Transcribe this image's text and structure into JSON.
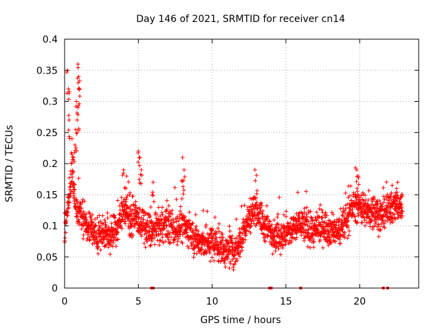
{
  "chart_data": {
    "type": "scatter",
    "title": "Day 146 of 2021, SRMTID for receiver cn14",
    "xlabel": "GPS time / hours",
    "ylabel": "SRMTID / TECUs",
    "xlim": [
      0,
      24
    ],
    "ylim": [
      0,
      0.4
    ],
    "x_ticks": [
      0,
      5,
      10,
      15,
      20
    ],
    "x_tick_labels": [
      "0",
      "5",
      "10",
      "15",
      "20"
    ],
    "y_ticks": [
      0,
      0.05,
      0.1,
      0.15,
      0.2,
      0.25,
      0.3,
      0.35,
      0.4
    ],
    "y_tick_labels": [
      "0",
      "0.05",
      "0.1",
      "0.15",
      "0.2",
      "0.25",
      "0.3",
      "0.35",
      "0.4"
    ],
    "grid": true,
    "marker": "+",
    "series_color": "#ff0000",
    "series": [
      {
        "name": "SRMTID",
        "trend": [
          [
            0.0,
            0.09
          ],
          [
            0.3,
            0.15
          ],
          [
            0.5,
            0.18
          ],
          [
            0.7,
            0.14
          ],
          [
            1.0,
            0.12
          ],
          [
            1.5,
            0.1
          ],
          [
            2.0,
            0.09
          ],
          [
            2.5,
            0.085
          ],
          [
            3.0,
            0.085
          ],
          [
            3.5,
            0.09
          ],
          [
            4.0,
            0.13
          ],
          [
            4.5,
            0.11
          ],
          [
            5.0,
            0.11
          ],
          [
            5.5,
            0.095
          ],
          [
            6.0,
            0.09
          ],
          [
            6.5,
            0.1
          ],
          [
            7.0,
            0.1
          ],
          [
            7.5,
            0.095
          ],
          [
            8.0,
            0.1
          ],
          [
            8.5,
            0.09
          ],
          [
            9.0,
            0.075
          ],
          [
            9.5,
            0.07
          ],
          [
            10.0,
            0.075
          ],
          [
            10.5,
            0.065
          ],
          [
            11.0,
            0.06
          ],
          [
            11.5,
            0.06
          ],
          [
            12.0,
            0.08
          ],
          [
            12.5,
            0.115
          ],
          [
            13.0,
            0.13
          ],
          [
            13.5,
            0.1
          ],
          [
            14.0,
            0.09
          ],
          [
            14.5,
            0.085
          ],
          [
            15.0,
            0.085
          ],
          [
            15.5,
            0.095
          ],
          [
            16.0,
            0.105
          ],
          [
            16.5,
            0.095
          ],
          [
            17.0,
            0.09
          ],
          [
            17.5,
            0.1
          ],
          [
            18.0,
            0.095
          ],
          [
            18.5,
            0.09
          ],
          [
            19.0,
            0.105
          ],
          [
            19.5,
            0.13
          ],
          [
            20.0,
            0.135
          ],
          [
            20.5,
            0.12
          ],
          [
            21.0,
            0.125
          ],
          [
            21.5,
            0.115
          ],
          [
            22.0,
            0.125
          ],
          [
            22.5,
            0.135
          ],
          [
            22.9,
            0.13
          ]
        ],
        "spread": 0.03,
        "spikes": [
          [
            0.2,
            0.35
          ],
          [
            0.25,
            0.32
          ],
          [
            0.3,
            0.27
          ],
          [
            0.5,
            0.24
          ],
          [
            0.6,
            0.21
          ],
          [
            0.7,
            0.23
          ],
          [
            0.8,
            0.3
          ],
          [
            0.85,
            0.27
          ],
          [
            0.9,
            0.36
          ],
          [
            0.95,
            0.34
          ],
          [
            1.0,
            0.32
          ],
          [
            0.9,
            0.29
          ],
          [
            4.0,
            0.19
          ],
          [
            4.2,
            0.18
          ],
          [
            4.4,
            0.15
          ],
          [
            5.0,
            0.22
          ],
          [
            5.1,
            0.21
          ],
          [
            5.2,
            0.19
          ],
          [
            6.0,
            0.17
          ],
          [
            8.0,
            0.21
          ],
          [
            8.1,
            0.19
          ],
          [
            12.9,
            0.19
          ],
          [
            19.8,
            0.19
          ],
          [
            19.9,
            0.18
          ],
          [
            22.2,
            0.165
          ],
          [
            22.5,
            0.16
          ]
        ]
      }
    ],
    "axis_markers": [
      {
        "x": 5.9
      },
      {
        "x": 6.0
      },
      {
        "x": 13.9
      },
      {
        "x": 14.0
      },
      {
        "x": 16.0
      },
      {
        "x": 21.6
      },
      {
        "x": 21.9
      }
    ]
  }
}
